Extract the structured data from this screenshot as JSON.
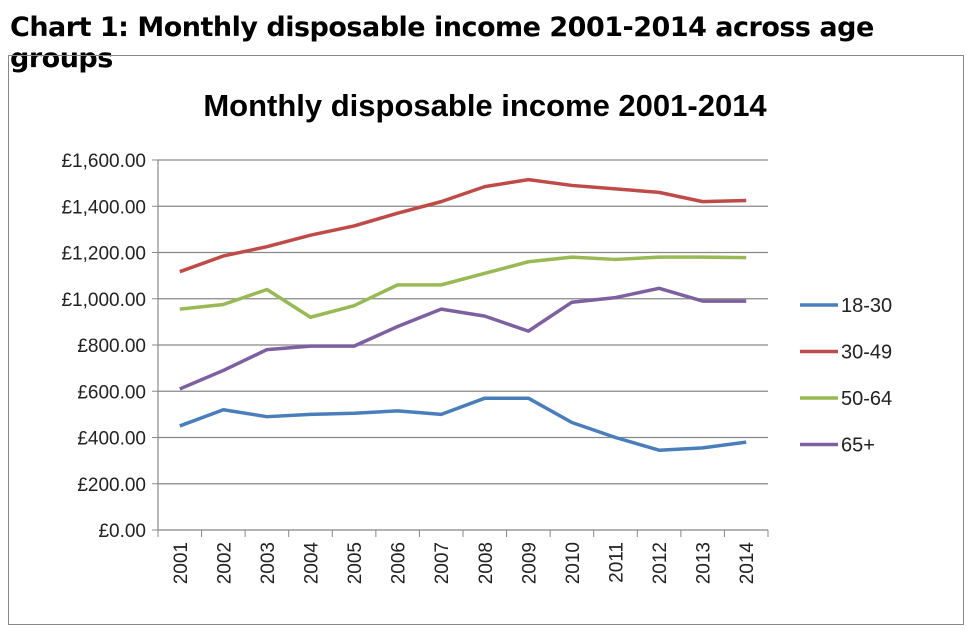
{
  "heading": "Chart 1: Monthly disposable income 2001-2014 across age groups",
  "chart_data": {
    "type": "line",
    "title": "Monthly disposable income 2001-2014",
    "xlabel": "",
    "ylabel": "",
    "x": [
      "2001",
      "2002",
      "2003",
      "2004",
      "2005",
      "2006",
      "2007",
      "2008",
      "2009",
      "2010",
      "2011",
      "2012",
      "2013",
      "2014"
    ],
    "yticks": [
      "£0.00",
      "£200.00",
      "£400.00",
      "£600.00",
      "£800.00",
      "£1,000.00",
      "£1,200.00",
      "£1,400.00",
      "£1,600.00"
    ],
    "ylim": [
      0,
      1600
    ],
    "grid": true,
    "legend": "right",
    "series": [
      {
        "name": "18-30",
        "color": "#4a7ebb",
        "values": [
          450,
          520,
          490,
          500,
          505,
          515,
          500,
          570,
          570,
          465,
          400,
          345,
          355,
          380
        ]
      },
      {
        "name": "30-49",
        "color": "#be4b48",
        "values": [
          1117,
          1185,
          1225,
          1275,
          1315,
          1370,
          1420,
          1485,
          1515,
          1490,
          1475,
          1460,
          1420,
          1425
        ]
      },
      {
        "name": "50-64",
        "color": "#98b954",
        "values": [
          955,
          975,
          1040,
          920,
          970,
          1060,
          1060,
          1110,
          1160,
          1180,
          1170,
          1180,
          1180,
          1178
        ]
      },
      {
        "name": "65+",
        "color": "#7d60a0",
        "values": [
          610,
          690,
          780,
          795,
          795,
          880,
          955,
          925,
          860,
          985,
          1005,
          1045,
          990,
          990
        ]
      }
    ]
  }
}
